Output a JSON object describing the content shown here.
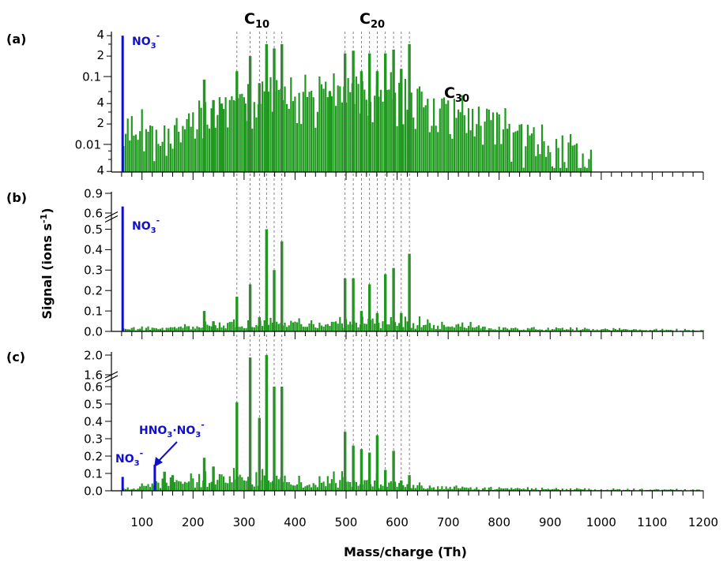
{
  "chart_data": {
    "type": "bar",
    "shared_x": {
      "label": "Mass/charge (Th)",
      "range": [
        40,
        1200
      ],
      "ticks": [
        100,
        200,
        300,
        400,
        500,
        600,
        700,
        800,
        900,
        1000,
        1100,
        1200
      ],
      "minor_step": 20
    },
    "ylabel": "Signal (ions s-1)",
    "ylabel_parts": {
      "main": "Signal (ions s",
      "sup": "-1",
      "end": ")"
    },
    "reference_lines_mz": [
      286,
      312,
      330,
      344,
      359,
      374,
      498,
      514,
      530,
      546,
      561,
      577,
      593,
      608,
      624
    ],
    "series_color": "#1f9a1f",
    "highlight_color": "#1010cc",
    "panels": [
      {
        "label": "(a)",
        "scale": "log",
        "ylim": [
          0.004,
          0.4
        ],
        "major_tick_labels": [
          "0.1",
          "0.01"
        ],
        "minor_tick_labels": [
          "4",
          "2",
          "4",
          "2",
          "4"
        ],
        "annotations": {
          "c10": {
            "main": "C",
            "sub": "10"
          },
          "c20": {
            "main": "C",
            "sub": "20"
          },
          "c30": {
            "main": "C",
            "sub": "30"
          },
          "nitrate": {
            "main": "NO",
            "sub": "3",
            "sup": "-"
          }
        },
        "highlight_bars": [
          {
            "mz": 62,
            "value": 0.4
          }
        ],
        "peaks": [
          {
            "mz": 286,
            "value": 0.12
          },
          {
            "mz": 302,
            "value": 0.04
          },
          {
            "mz": 312,
            "value": 0.2
          },
          {
            "mz": 330,
            "value": 0.08
          },
          {
            "mz": 344,
            "value": 0.3
          },
          {
            "mz": 359,
            "value": 0.26
          },
          {
            "mz": 374,
            "value": 0.3
          },
          {
            "mz": 498,
            "value": 0.22
          },
          {
            "mz": 514,
            "value": 0.24
          },
          {
            "mz": 530,
            "value": 0.12
          },
          {
            "mz": 546,
            "value": 0.22
          },
          {
            "mz": 561,
            "value": 0.12
          },
          {
            "mz": 577,
            "value": 0.22
          },
          {
            "mz": 593,
            "value": 0.25
          },
          {
            "mz": 608,
            "value": 0.13
          },
          {
            "mz": 624,
            "value": 0.3
          },
          {
            "mz": 222,
            "value": 0.09
          },
          {
            "mz": 240,
            "value": 0.045
          },
          {
            "mz": 256,
            "value": 0.04
          },
          {
            "mz": 468,
            "value": 0.06
          },
          {
            "mz": 530,
            "value": 0.08
          }
        ],
        "envelope": [
          [
            62,
            0.006
          ],
          [
            80,
            0.016
          ],
          [
            120,
            0.014
          ],
          [
            150,
            0.011
          ],
          [
            175,
            0.016
          ],
          [
            210,
            0.024
          ],
          [
            260,
            0.03
          ],
          [
            300,
            0.035
          ],
          [
            350,
            0.045
          ],
          [
            400,
            0.045
          ],
          [
            450,
            0.05
          ],
          [
            500,
            0.06
          ],
          [
            550,
            0.055
          ],
          [
            600,
            0.05
          ],
          [
            650,
            0.04
          ],
          [
            700,
            0.032
          ],
          [
            750,
            0.025
          ],
          [
            800,
            0.018
          ],
          [
            850,
            0.012
          ],
          [
            900,
            0.008
          ],
          [
            950,
            0.006
          ],
          [
            980,
            0.005
          ]
        ]
      },
      {
        "label": "(b)",
        "scale": "broken",
        "ylim": [
          0,
          0.9
        ],
        "break": [
          0.52,
          0.58
        ],
        "tick_labels": [
          "0.0",
          "0.1",
          "0.2",
          "0.3",
          "0.4",
          "0.5",
          "0.6",
          "0.9"
        ],
        "annotations": {
          "nitrate": {
            "main": "NO",
            "sub": "3",
            "sup": "-"
          }
        },
        "highlight_bars": [
          {
            "mz": 62,
            "value": 0.7
          }
        ],
        "peaks": [
          {
            "mz": 222,
            "value": 0.1
          },
          {
            "mz": 240,
            "value": 0.05
          },
          {
            "mz": 286,
            "value": 0.17
          },
          {
            "mz": 312,
            "value": 0.23
          },
          {
            "mz": 330,
            "value": 0.07
          },
          {
            "mz": 344,
            "value": 0.5
          },
          {
            "mz": 359,
            "value": 0.3
          },
          {
            "mz": 374,
            "value": 0.44
          },
          {
            "mz": 498,
            "value": 0.26
          },
          {
            "mz": 514,
            "value": 0.26
          },
          {
            "mz": 530,
            "value": 0.1
          },
          {
            "mz": 546,
            "value": 0.23
          },
          {
            "mz": 561,
            "value": 0.09
          },
          {
            "mz": 577,
            "value": 0.28
          },
          {
            "mz": 593,
            "value": 0.31
          },
          {
            "mz": 608,
            "value": 0.09
          },
          {
            "mz": 624,
            "value": 0.38
          }
        ],
        "envelope": [
          [
            62,
            0.01
          ],
          [
            150,
            0.012
          ],
          [
            210,
            0.02
          ],
          [
            280,
            0.03
          ],
          [
            350,
            0.035
          ],
          [
            420,
            0.03
          ],
          [
            480,
            0.045
          ],
          [
            550,
            0.04
          ],
          [
            620,
            0.035
          ],
          [
            700,
            0.025
          ],
          [
            800,
            0.015
          ],
          [
            900,
            0.01
          ],
          [
            1000,
            0.008
          ],
          [
            1100,
            0.006
          ],
          [
            1200,
            0.005
          ]
        ]
      },
      {
        "label": "(c)",
        "scale": "broken",
        "ylim": [
          0,
          2.0
        ],
        "break": [
          0.62,
          1.55
        ],
        "tick_labels": [
          "0.0",
          "0.1",
          "0.2",
          "0.3",
          "0.4",
          "0.5",
          "0.6",
          "1.6",
          "2.0"
        ],
        "annotations": {
          "nitrate": {
            "main": "NO",
            "sub": "3",
            "sup": "-"
          },
          "dimer": {
            "p1": "HNO",
            "s1": "3",
            "mid": "·NO",
            "s2": "3",
            "sup": "-"
          }
        },
        "highlight_bars": [
          {
            "mz": 62,
            "value": 0.08
          },
          {
            "mz": 125,
            "value": 0.15
          }
        ],
        "peaks": [
          {
            "mz": 144,
            "value": 0.11
          },
          {
            "mz": 160,
            "value": 0.09
          },
          {
            "mz": 222,
            "value": 0.19
          },
          {
            "mz": 240,
            "value": 0.14
          },
          {
            "mz": 286,
            "value": 0.51
          },
          {
            "mz": 312,
            "value": 1.95
          },
          {
            "mz": 330,
            "value": 0.42
          },
          {
            "mz": 344,
            "value": 2.0
          },
          {
            "mz": 359,
            "value": 0.6
          },
          {
            "mz": 374,
            "value": 0.6
          },
          {
            "mz": 498,
            "value": 0.34
          },
          {
            "mz": 514,
            "value": 0.26
          },
          {
            "mz": 530,
            "value": 0.24
          },
          {
            "mz": 546,
            "value": 0.22
          },
          {
            "mz": 561,
            "value": 0.32
          },
          {
            "mz": 577,
            "value": 0.12
          },
          {
            "mz": 593,
            "value": 0.23
          },
          {
            "mz": 608,
            "value": 0.06
          },
          {
            "mz": 624,
            "value": 0.09
          }
        ],
        "envelope": [
          [
            62,
            0.008
          ],
          [
            130,
            0.03
          ],
          [
            200,
            0.05
          ],
          [
            260,
            0.06
          ],
          [
            320,
            0.06
          ],
          [
            400,
            0.04
          ],
          [
            460,
            0.05
          ],
          [
            520,
            0.05
          ],
          [
            600,
            0.04
          ],
          [
            650,
            0.02
          ],
          [
            750,
            0.012
          ],
          [
            850,
            0.01
          ],
          [
            950,
            0.008
          ],
          [
            1050,
            0.006
          ],
          [
            1200,
            0.005
          ]
        ]
      }
    ]
  }
}
